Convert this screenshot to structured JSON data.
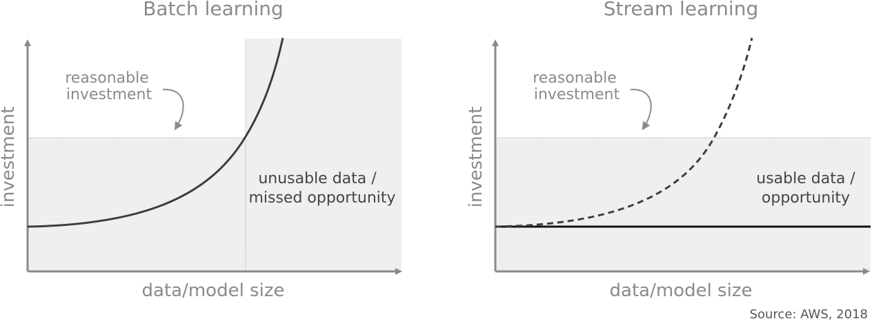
{
  "colors": {
    "shade": "#efefef",
    "axis": "#8a8a8a",
    "curve": "#3d3d3d",
    "baseline": "#111111",
    "text_grey": "#8a8a8a",
    "text_dark": "#444444"
  },
  "panels": [
    {
      "title": "Batch learning",
      "xlabel": "data/model size",
      "ylabel": "investment",
      "annotation": [
        "reasonable",
        "investment"
      ],
      "region_label": [
        "unusable data /",
        "missed opportunity"
      ],
      "curve_style": "solid",
      "has_baseline": false
    },
    {
      "title": "Stream learning",
      "xlabel": "data/model size",
      "ylabel": "investment",
      "annotation": [
        "reasonable",
        "investment"
      ],
      "region_label": [
        "usable data /",
        "opportunity"
      ],
      "curve_style": "dashed",
      "has_baseline": true
    }
  ],
  "source": "Source: AWS, 2018"
}
